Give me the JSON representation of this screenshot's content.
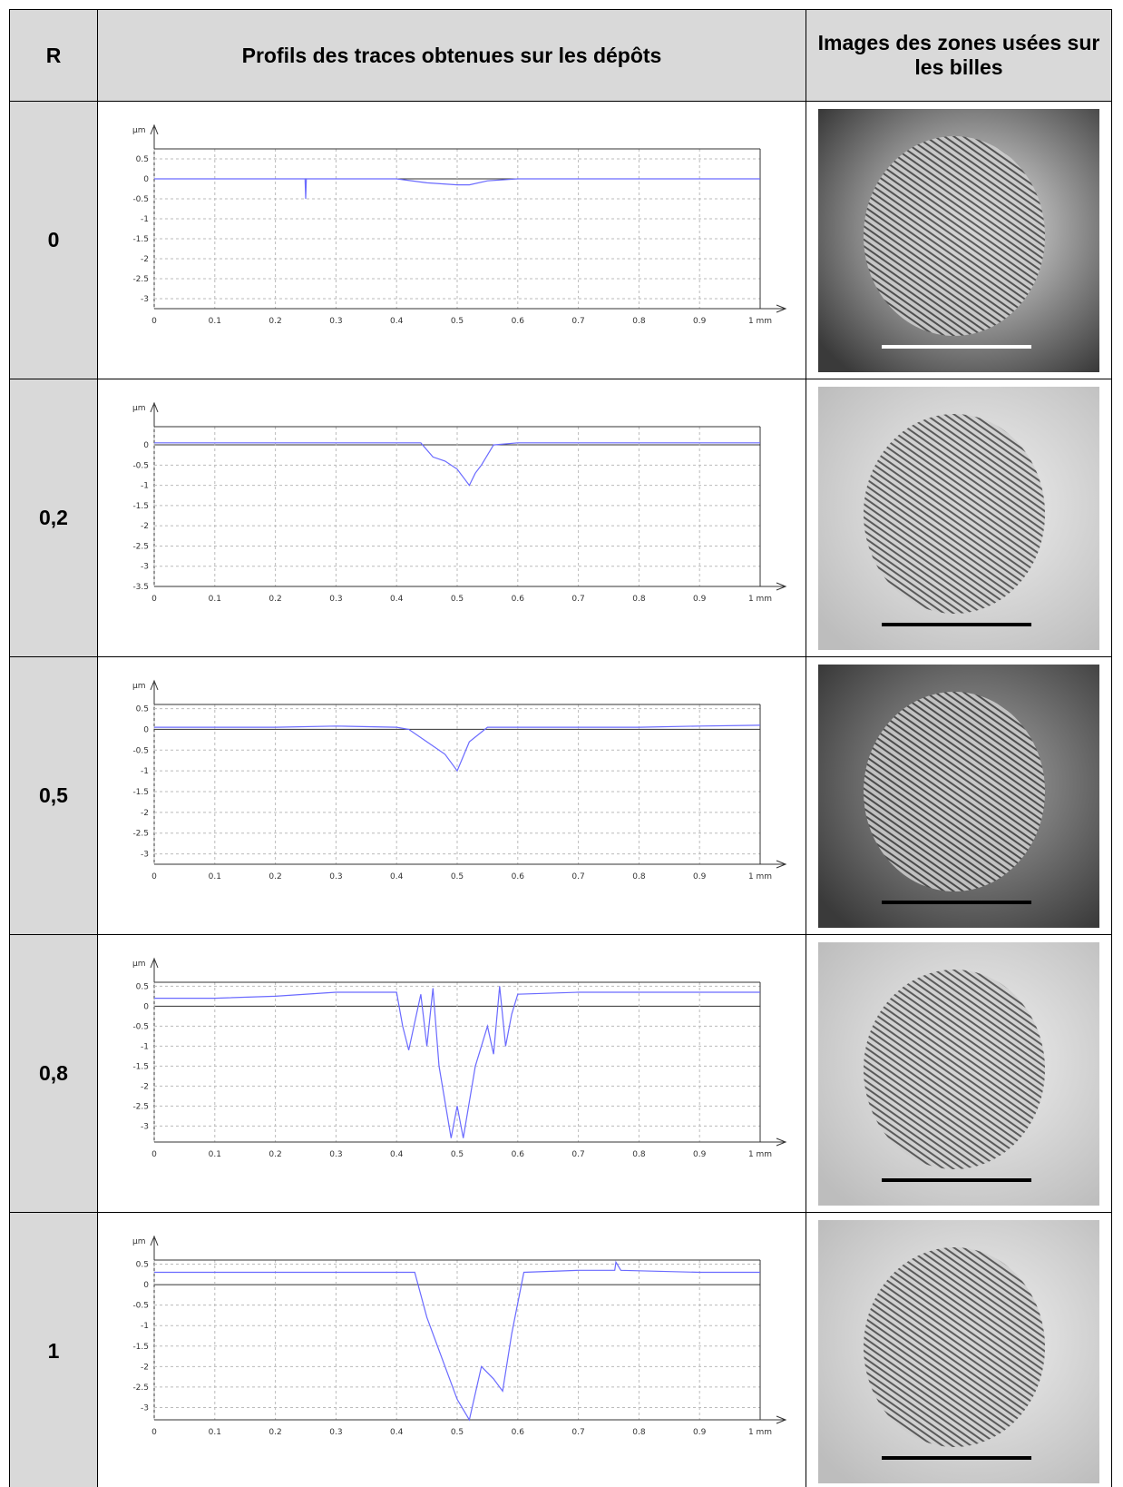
{
  "table": {
    "header": [
      "R",
      "Profils des traces obtenues sur les dépôts",
      "Images des zones usées sur les billes"
    ],
    "rows": [
      {
        "r": "0",
        "profile": {
          "type": "line",
          "ylabel": "µm",
          "color": "#6a6aff",
          "xlim": [
            0,
            1
          ],
          "xticks": [
            0,
            0.1,
            0.2,
            0.3,
            0.4,
            0.5,
            0.6,
            0.7,
            0.8,
            0.9,
            {
              "value": 1,
              "label": "1 mm"
            }
          ],
          "ylim": [
            -3.25,
            0.75
          ],
          "yticks": [
            0.5,
            0,
            -0.5,
            -1,
            -1.5,
            -2,
            -2.5,
            -3
          ],
          "x": [
            0,
            0.1,
            0.2,
            0.249,
            0.25,
            0.251,
            0.3,
            0.4,
            0.45,
            0.5,
            0.52,
            0.55,
            0.6,
            0.7,
            0.8,
            0.9,
            1
          ],
          "values": [
            0,
            0,
            0,
            0,
            -0.5,
            0,
            0,
            0,
            -0.1,
            -0.15,
            -0.15,
            -0.05,
            0,
            0,
            0,
            0,
            0
          ]
        }
      },
      {
        "r": "0,2",
        "profile": {
          "type": "line",
          "ylabel": "µm",
          "color": "#6a6aff",
          "xlim": [
            0,
            1
          ],
          "xticks": [
            0,
            0.1,
            0.2,
            0.3,
            0.4,
            0.5,
            0.6,
            0.7,
            0.8,
            0.9,
            {
              "value": 1,
              "label": "1 mm"
            }
          ],
          "ylim": [
            -3.5,
            0.45
          ],
          "yticks": [
            0,
            -0.5,
            -1,
            -1.5,
            -2,
            -2.5,
            -3,
            -3.5
          ],
          "x": [
            0,
            0.1,
            0.2,
            0.3,
            0.4,
            0.44,
            0.46,
            0.48,
            0.5,
            0.51,
            0.52,
            0.53,
            0.54,
            0.56,
            0.6,
            0.7,
            0.8,
            0.9,
            1
          ],
          "values": [
            0.05,
            0.05,
            0.05,
            0.05,
            0.05,
            0.05,
            -0.3,
            -0.4,
            -0.6,
            -0.8,
            -1,
            -0.7,
            -0.5,
            0,
            0.05,
            0.05,
            0.05,
            0.05,
            0.05
          ]
        }
      },
      {
        "r": "0,5",
        "profile": {
          "type": "line",
          "ylabel": "µm",
          "color": "#6a6aff",
          "xlim": [
            0,
            1
          ],
          "xticks": [
            0,
            0.1,
            0.2,
            0.3,
            0.4,
            0.5,
            0.6,
            0.7,
            0.8,
            0.9,
            {
              "value": 1,
              "label": "1 mm"
            }
          ],
          "ylim": [
            -3.25,
            0.6
          ],
          "yticks": [
            0.5,
            0,
            -0.5,
            -1,
            -1.5,
            -2,
            -2.5,
            -3
          ],
          "x": [
            0,
            0.1,
            0.2,
            0.3,
            0.4,
            0.42,
            0.45,
            0.48,
            0.5,
            0.52,
            0.55,
            0.6,
            0.7,
            0.8,
            0.9,
            1
          ],
          "values": [
            0.05,
            0.05,
            0.05,
            0.08,
            0.05,
            0,
            -0.3,
            -0.6,
            -1,
            -0.3,
            0.05,
            0.05,
            0.05,
            0.05,
            0.08,
            0.1
          ]
        }
      },
      {
        "r": "0,8",
        "profile": {
          "type": "line",
          "ylabel": "µm",
          "color": "#6a6aff",
          "xlim": [
            0,
            1
          ],
          "xticks": [
            0,
            0.1,
            0.2,
            0.3,
            0.4,
            0.5,
            0.6,
            0.7,
            0.8,
            0.9,
            {
              "value": 1,
              "label": "1 mm"
            }
          ],
          "ylim": [
            -3.4,
            0.6
          ],
          "yticks": [
            0.5,
            0,
            -0.5,
            -1,
            -1.5,
            -2,
            -2.5,
            -3
          ],
          "x": [
            0,
            0.1,
            0.2,
            0.3,
            0.4,
            0.41,
            0.42,
            0.44,
            0.45,
            0.46,
            0.47,
            0.49,
            0.5,
            0.51,
            0.53,
            0.55,
            0.56,
            0.57,
            0.58,
            0.59,
            0.6,
            0.7,
            0.8,
            0.9,
            1
          ],
          "values": [
            0.2,
            0.2,
            0.25,
            0.35,
            0.35,
            -0.5,
            -1.1,
            0.3,
            -1,
            0.45,
            -1.5,
            -3.3,
            -2.5,
            -3.3,
            -1.5,
            -0.5,
            -1.2,
            0.5,
            -1,
            -0.2,
            0.3,
            0.35,
            0.35,
            0.35,
            0.35
          ]
        }
      },
      {
        "r": "1",
        "profile": {
          "type": "line",
          "ylabel": "µm",
          "color": "#6a6aff",
          "xlim": [
            0,
            1
          ],
          "xticks": [
            0,
            0.1,
            0.2,
            0.3,
            0.4,
            0.5,
            0.6,
            0.7,
            0.8,
            0.9,
            {
              "value": 1,
              "label": "1 mm"
            }
          ],
          "ylim": [
            -3.3,
            0.6
          ],
          "yticks": [
            0.5,
            0,
            -0.5,
            -1,
            -1.5,
            -2,
            -2.5,
            -3
          ],
          "x": [
            0,
            0.1,
            0.2,
            0.3,
            0.43,
            0.45,
            0.48,
            0.5,
            0.52,
            0.54,
            0.56,
            0.575,
            0.59,
            0.61,
            0.7,
            0.76,
            0.762,
            0.77,
            0.9,
            1
          ],
          "values": [
            0.3,
            0.3,
            0.3,
            0.3,
            0.3,
            -0.8,
            -2,
            -2.8,
            -3.3,
            -2,
            -2.3,
            -2.6,
            -1.2,
            0.3,
            0.35,
            0.35,
            0.55,
            0.35,
            0.3,
            0.3
          ]
        }
      }
    ]
  }
}
